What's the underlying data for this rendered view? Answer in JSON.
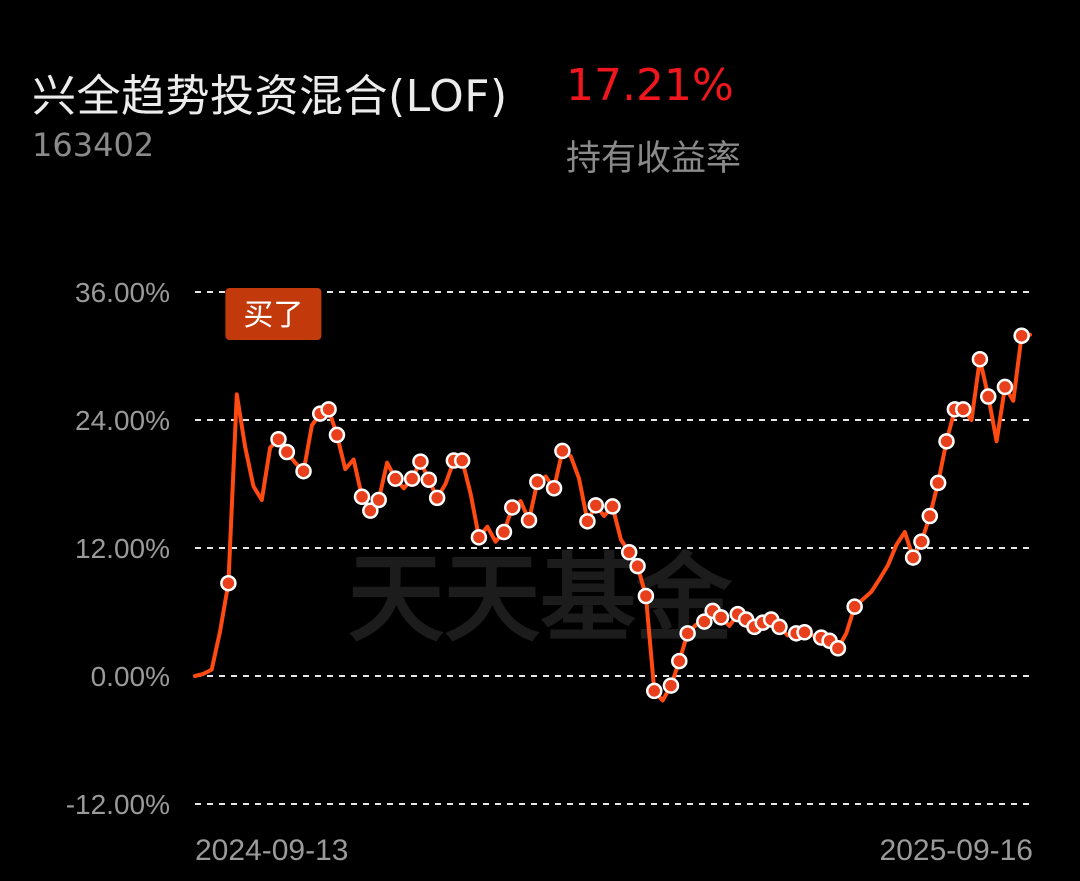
{
  "header": {
    "fund_name": "兴全趋势投资混合(LOF)",
    "fund_code": "163402",
    "return_value": "17.21%",
    "return_label": "持有收益率"
  },
  "colors": {
    "background": "#000000",
    "line": "#ff4a12",
    "marker_fill": "#e8401c",
    "marker_stroke": "#ffffff",
    "return_red": "#f0161d",
    "buy_flag": "#c23a0c",
    "gridline": "#ffffff",
    "text_muted": "#9a9a9a"
  },
  "watermark": "天天基金",
  "chart_data": {
    "type": "line",
    "title": "",
    "xlabel": "",
    "ylabel": "",
    "ylim": [
      -12,
      36
    ],
    "y_ticks": [
      "-12.00%",
      "0.00%",
      "12.00%",
      "24.00%",
      "36.00%"
    ],
    "y_tick_values": [
      -12,
      0,
      12,
      24,
      36
    ],
    "grid": "horizontal dashed",
    "x_start_label": "2024-09-13",
    "x_end_label": "2025-09-16",
    "buy_marker": {
      "label": "买了",
      "index": 4
    },
    "series": [
      {
        "values": [
          0.0,
          0.2,
          0.6,
          4.2,
          8.7,
          26.4,
          21.5,
          17.8,
          16.5,
          21.4,
          22.2,
          21.0,
          20.0,
          19.2,
          23.5,
          24.6,
          25.0,
          22.6,
          19.4,
          20.3,
          16.8,
          15.5,
          16.5,
          20.0,
          18.5,
          17.6,
          18.5,
          20.1,
          18.4,
          16.7,
          18.0,
          20.2,
          20.2,
          17.1,
          13.0,
          14.0,
          12.6,
          13.5,
          15.8,
          16.4,
          14.6,
          18.2,
          18.7,
          17.6,
          21.1,
          20.6,
          18.5,
          14.5,
          16.0,
          15.0,
          15.9,
          12.8,
          11.6,
          10.3,
          7.5,
          -1.4,
          -2.3,
          -0.9,
          1.4,
          4.0,
          4.8,
          5.1,
          6.1,
          5.5,
          4.7,
          5.8,
          5.3,
          4.6,
          5.0,
          5.3,
          4.6,
          3.8,
          4.0,
          4.1,
          3.8,
          3.6,
          3.3,
          2.6,
          4.0,
          6.5,
          7.2,
          7.9,
          9.1,
          10.4,
          12.3,
          13.5,
          11.1,
          12.6,
          15.0,
          18.1,
          22.0,
          25.0,
          25.0,
          24.0,
          29.7,
          26.2,
          22.0,
          27.1,
          25.8,
          31.9,
          32.0
        ]
      }
    ],
    "marker_indices": [
      4,
      10,
      11,
      13,
      15,
      16,
      17,
      20,
      21,
      22,
      24,
      26,
      27,
      28,
      29,
      31,
      32,
      34,
      37,
      38,
      40,
      41,
      43,
      44,
      47,
      48,
      50,
      52,
      53,
      54,
      55,
      57,
      58,
      59,
      61,
      62,
      63,
      65,
      66,
      67,
      68,
      69,
      70,
      72,
      73,
      75,
      76,
      77,
      79,
      86,
      87,
      88,
      89,
      90,
      91,
      92,
      94,
      95,
      97,
      99
    ]
  }
}
